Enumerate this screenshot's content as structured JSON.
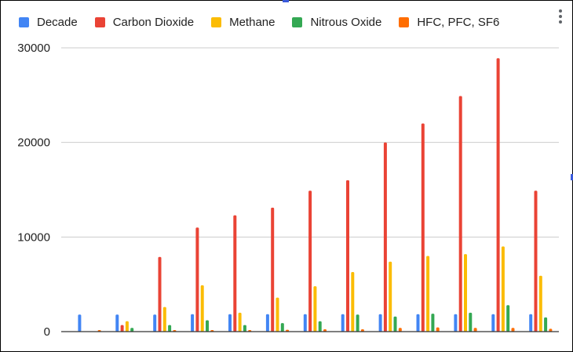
{
  "chart_data": {
    "type": "bar",
    "title": "",
    "xlabel": "",
    "ylabel": "",
    "categories": [
      "",
      "",
      "",
      "",
      "",
      "",
      "",
      "",
      "",
      "",
      "",
      "",
      ""
    ],
    "series": [
      {
        "name": "Decade",
        "color": "#4285f4",
        "values": [
          1800,
          1800,
          1800,
          1850,
          1850,
          1850,
          1850,
          1850,
          1850,
          1850,
          1850,
          1850,
          1850
        ]
      },
      {
        "name": "Carbon Dioxide",
        "color": "#ea4335",
        "values": [
          0,
          700,
          7900,
          11000,
          12300,
          13100,
          14900,
          16000,
          20000,
          22000,
          24900,
          28900,
          14900
        ]
      },
      {
        "name": "Methane",
        "color": "#fbbc04",
        "values": [
          0,
          1100,
          2600,
          4900,
          2000,
          3600,
          4800,
          6300,
          7400,
          8000,
          8200,
          9000,
          5900
        ]
      },
      {
        "name": "Nitrous Oxide",
        "color": "#34a853",
        "values": [
          0,
          400,
          700,
          1200,
          700,
          900,
          1100,
          1800,
          1600,
          1900,
          2000,
          2800,
          1500
        ]
      },
      {
        "name": "HFC, PFC, SF6",
        "color": "#ff6d01",
        "values": [
          50,
          0,
          50,
          100,
          150,
          200,
          250,
          250,
          400,
          450,
          400,
          400,
          300
        ]
      }
    ],
    "ylim": [
      0,
      30000
    ],
    "yticks": [
      0,
      10000,
      20000,
      30000
    ],
    "grid": true,
    "legend_position": "top"
  },
  "ui": {
    "menu_icon": "more-vert-icon"
  }
}
